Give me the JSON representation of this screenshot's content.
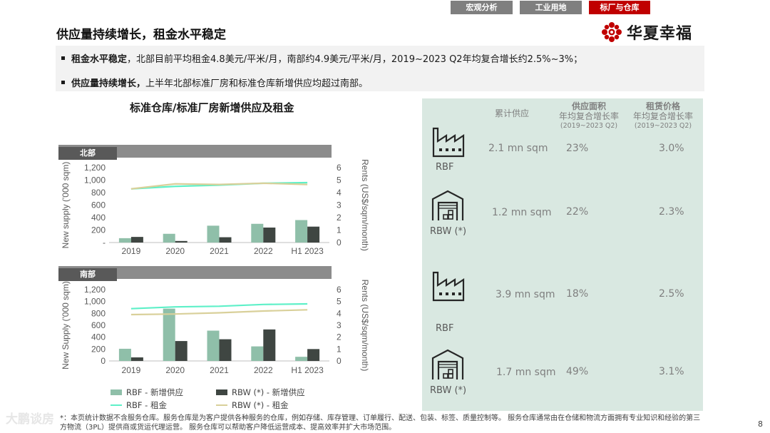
{
  "tabs": [
    {
      "label": "宏观分析",
      "active": false
    },
    {
      "label": "工业用地",
      "active": false
    },
    {
      "label": "标厂与仓库",
      "active": true
    }
  ],
  "page_title": "供应量持续增长，租金水平稳定",
  "logo": {
    "text": "华夏幸福",
    "color": "#c00000"
  },
  "bullets": [
    {
      "bold": "租金水平稳定",
      "text": "，北部目前平均租金4.8美元/平米/月，南部约4.9美元/平米/月，2019~2023 Q2年均复合增长约2.5%~3%；"
    },
    {
      "bold": "供应量持续增长，",
      "text": "上半年北部标准厂房和标准仓库新增供应均超过南部。"
    }
  ],
  "chart_title": "标准仓库/标准厂房新增供应及租金",
  "colors": {
    "rbf_bar": "#8fbfa9",
    "rbw_bar": "#3f4642",
    "rbf_rent": "#5ef0c8",
    "rbw_rent": "#d9d09a",
    "accent": "#c00000",
    "panel_bg": "#d9e8e1"
  },
  "chart_data": [
    {
      "type": "bar",
      "region": "北部",
      "categories": [
        "2019",
        "2020",
        "2021",
        "2022",
        "H1 2023"
      ],
      "ylabel": "New supply ('000 sqm)",
      "y2label": "Rents (US$/sqm/month)",
      "ylim": [
        0,
        1200
      ],
      "y2lim": [
        0,
        6
      ],
      "yticks": [
        "-",
        "200",
        "400",
        "600",
        "800",
        "1,000",
        "1,200"
      ],
      "y2ticks": [
        "0",
        "1",
        "2",
        "3",
        "4",
        "5",
        "6"
      ],
      "series": [
        {
          "name": "RBF - 新增供应",
          "kind": "bar",
          "values": [
            70,
            140,
            270,
            300,
            360
          ]
        },
        {
          "name": "RBW (*) - 新增供应",
          "kind": "bar",
          "values": [
            90,
            25,
            85,
            240,
            255
          ]
        },
        {
          "name": "RBF - 租金",
          "kind": "line",
          "axis": "right",
          "values": [
            4.3,
            4.5,
            4.6,
            4.75,
            4.8
          ]
        },
        {
          "name": "RBW (*) - 租金",
          "kind": "line",
          "axis": "right",
          "values": [
            4.3,
            4.7,
            4.65,
            4.75,
            4.65
          ]
        }
      ]
    },
    {
      "type": "bar",
      "region": "南部",
      "categories": [
        "2019",
        "2020",
        "2021",
        "2022",
        "H1 2023"
      ],
      "ylabel": "New Supply ('000 sqm)",
      "y2label": "Rents (US$/sqm/month)",
      "ylim": [
        0,
        1200
      ],
      "y2lim": [
        0,
        6
      ],
      "yticks": [
        "0",
        "200",
        "400",
        "600",
        "800",
        "1,000",
        "1,200"
      ],
      "y2ticks": [
        "0",
        "1",
        "2",
        "3",
        "4",
        "5",
        "6"
      ],
      "series": [
        {
          "name": "RBF - 新增供应",
          "kind": "bar",
          "values": [
            205,
            880,
            510,
            245,
            70
          ]
        },
        {
          "name": "RBW (*) - 新增供应",
          "kind": "bar",
          "values": [
            60,
            335,
            365,
            530,
            200
          ]
        },
        {
          "name": "RBF - 租金",
          "kind": "line",
          "axis": "right",
          "values": [
            4.4,
            4.55,
            4.6,
            4.75,
            4.8
          ]
        },
        {
          "name": "RBW (*) - 租金",
          "kind": "line",
          "axis": "right",
          "values": [
            3.9,
            3.95,
            4.05,
            4.2,
            4.3
          ]
        }
      ]
    }
  ],
  "legend": [
    {
      "label": "RBF -  新增供应",
      "kind": "bar",
      "color": "#8fbfa9"
    },
    {
      "label": "RBW (*) -  新增供应",
      "kind": "bar",
      "color": "#3f4642"
    },
    {
      "label": "RBF -  租金",
      "kind": "line",
      "color": "#5ef0c8"
    },
    {
      "label": "RBW (*) -  租金",
      "kind": "line",
      "color": "#d9d09a"
    }
  ],
  "panel": {
    "headers": {
      "cumulative": "累计供应",
      "area_title": "供应面积",
      "area_sub": "年均复合增长率",
      "area_note": "(2019~2023 Q2)",
      "rent_title": "租赁价格",
      "rent_sub": "年均复合增长率",
      "rent_note": "(2019~2023 Q2)"
    },
    "rows": [
      {
        "icon": "factory-icon",
        "label": "RBF",
        "supply": "2.1 mn sqm",
        "area_cagr": "23%",
        "rent_cagr": "3.0%"
      },
      {
        "icon": "warehouse-icon",
        "label": "RBW (*)",
        "supply": "1.2 mn sqm",
        "area_cagr": "22%",
        "rent_cagr": "2.3%"
      },
      {
        "icon": "factory-icon",
        "label": "RBF",
        "supply": "3.9 mn sqm",
        "area_cagr": "18%",
        "rent_cagr": "2.5%"
      },
      {
        "icon": "warehouse-icon",
        "label": "RBW (*)",
        "supply": "1.7 mn sqm",
        "area_cagr": "49%",
        "rent_cagr": "3.1%"
      }
    ]
  },
  "footnote": "*：本页统计数据不含服务仓库。服务仓库是为客户提供各种服务的仓库，例如存储、库存管理、订单履行、配送、包装、标签、质量控制等。 服务仓库通常由在仓储和物流方面拥有专业知识和经验的第三方物流（3PL）提供商或货运代理运营。 服务仓库可以帮助客户降低运营成本、提高效率并扩大市场范围。",
  "page_number": "8",
  "watermark": "大鹏谈房"
}
